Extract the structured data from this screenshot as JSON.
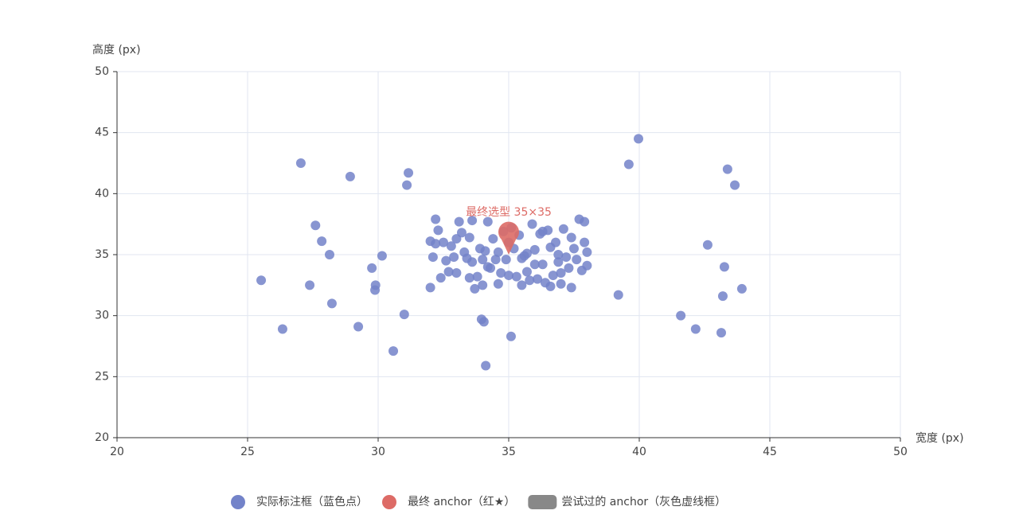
{
  "chart_data": {
    "type": "scatter",
    "x_label": "宽度 (px)",
    "y_label": "高度 (px)",
    "xlim": [
      20,
      50
    ],
    "xticks": [
      20,
      25,
      30,
      35,
      40,
      45,
      50
    ],
    "ylim": [
      20,
      50
    ],
    "yticks": [
      20,
      25,
      30,
      35,
      40,
      45,
      50
    ],
    "grid": true,
    "legend": "bottom",
    "series": [
      {
        "name": "实际标注框（蓝色点）",
        "color": "#7383c9",
        "symbol": "circle",
        "x": [
          27.04,
          28.93,
          31.16,
          31.1,
          27.6,
          27.84,
          28.14,
          25.52,
          27.38,
          28.23,
          26.34,
          29.24,
          29.76,
          30.15,
          29.9,
          29.88,
          31.0,
          30.58,
          33.96,
          34.05,
          34.12,
          35.09,
          39.97,
          39.6,
          43.38,
          43.66,
          42.62,
          43.26,
          43.93,
          43.2,
          39.2,
          41.59,
          42.16,
          43.14,
          32.0,
          32.1,
          32.2,
          32.3,
          32.5,
          32.6,
          32.8,
          33.0,
          33.1,
          33.2,
          33.3,
          33.4,
          33.5,
          33.6,
          33.7,
          33.9,
          34.0,
          34.1,
          34.2,
          34.3,
          34.4,
          34.5,
          34.6,
          34.7,
          34.8,
          34.9,
          35.0,
          35.1,
          35.2,
          35.3,
          35.4,
          35.5,
          35.6,
          35.7,
          35.8,
          35.9,
          36.0,
          36.1,
          36.2,
          36.3,
          36.4,
          36.5,
          36.6,
          36.7,
          36.8,
          36.9,
          37.0,
          37.1,
          37.2,
          37.3,
          37.4,
          37.5,
          37.6,
          37.7,
          37.8,
          37.9,
          38.0,
          38.0,
          37.9,
          32.0,
          32.4,
          32.9,
          33.0,
          34.2,
          33.5,
          34.6,
          35.7,
          36.3,
          36.9,
          37.4,
          32.7,
          33.8,
          35.5,
          36.0,
          34.0,
          37.0,
          32.2,
          33.6,
          35.0,
          36.6
        ],
        "values": [
          42.5,
          41.4,
          41.7,
          40.7,
          37.4,
          36.1,
          35.0,
          32.9,
          32.5,
          31.0,
          28.9,
          29.1,
          33.9,
          34.9,
          32.5,
          32.1,
          30.1,
          27.1,
          29.7,
          29.5,
          25.9,
          28.3,
          44.5,
          42.4,
          42.0,
          40.7,
          35.8,
          34.0,
          32.2,
          31.6,
          31.7,
          30.0,
          28.9,
          28.6,
          36.1,
          34.8,
          37.9,
          37.0,
          36.0,
          34.5,
          35.7,
          36.3,
          37.7,
          36.8,
          35.2,
          34.7,
          33.1,
          34.4,
          32.2,
          35.5,
          32.5,
          35.3,
          34.0,
          33.9,
          36.3,
          34.6,
          32.6,
          33.5,
          36.9,
          34.6,
          33.3,
          37.2,
          35.5,
          33.2,
          36.6,
          32.5,
          34.9,
          33.6,
          32.9,
          37.5,
          35.4,
          33.0,
          36.7,
          34.2,
          32.7,
          37.0,
          35.6,
          33.3,
          36.0,
          34.4,
          32.6,
          37.1,
          34.8,
          33.9,
          32.3,
          35.5,
          34.6,
          37.9,
          33.7,
          36.0,
          35.2,
          34.1,
          37.7,
          32.3,
          33.1,
          34.8,
          33.5,
          37.7,
          36.4,
          35.2,
          35.1,
          36.9,
          35.0,
          36.4,
          33.6,
          33.2,
          34.7,
          34.2,
          34.6,
          33.5,
          35.9,
          37.8,
          36.0,
          32.4
        ]
      },
      {
        "name": "最终 anchor（红★）",
        "color": "#dd6b66",
        "symbol": "pin",
        "x": [
          35
        ],
        "values": [
          35
        ],
        "annotation": "最终选型 35×35"
      },
      {
        "name": "尝试过的 anchor（灰色虚线框）",
        "color": "#888888",
        "symbol": "roundRect",
        "x": [],
        "values": []
      }
    ]
  }
}
